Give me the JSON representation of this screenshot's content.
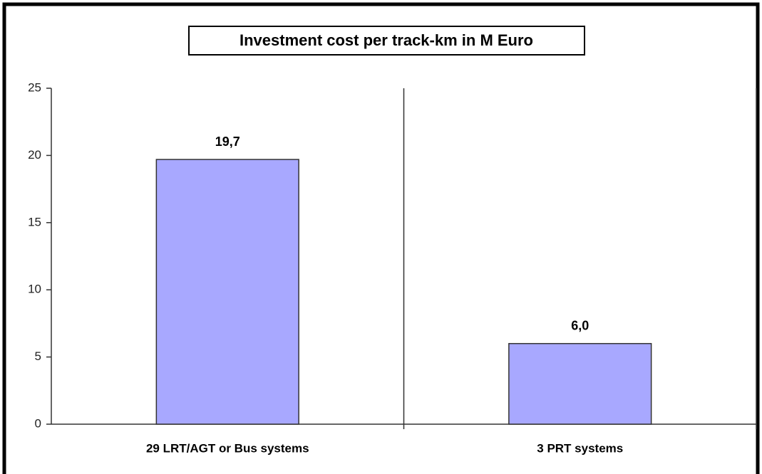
{
  "chart_data": {
    "type": "bar",
    "title": "Investment cost per track-km in M Euro",
    "categories": [
      "29 LRT/AGT or Bus systems",
      "3 PRT systems"
    ],
    "values": [
      19.7,
      6.0
    ],
    "value_labels": [
      "19,7",
      "6,0"
    ],
    "color": "#a8a8ff",
    "ylim": [
      0,
      25
    ],
    "yticks": [
      0,
      5,
      10,
      15,
      20,
      25
    ],
    "grid": false
  }
}
